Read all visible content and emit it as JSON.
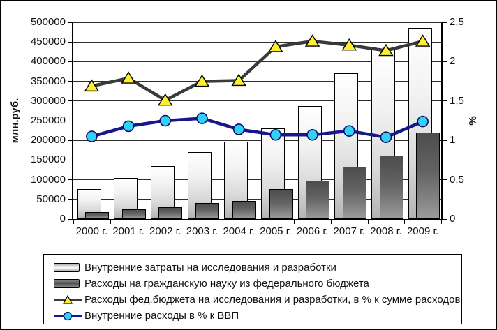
{
  "chart_data": {
    "type": "bar+line combo",
    "categories": [
      "2000 г.",
      "2001 г.",
      "2002 г.",
      "2003 г.",
      "2004 г.",
      "2005 г.",
      "2006 г.",
      "2007 г.",
      "2008 г.",
      "2009 г."
    ],
    "series": [
      {
        "name": "Внутренние затраты на исследования и разработки",
        "type": "bar",
        "style": "light",
        "axis": "left",
        "values": [
          76000,
          105000,
          135000,
          170000,
          196000,
          231000,
          288000,
          370000,
          430000,
          486000
        ]
      },
      {
        "name": "Расходы на гражданскую науку из федерального бюджета",
        "type": "bar",
        "style": "dark",
        "axis": "left",
        "values": [
          17000,
          24000,
          31000,
          41000,
          47000,
          77000,
          97000,
          133000,
          162000,
          219000
        ]
      },
      {
        "name": "Расходы фед.бюджета на исследования и разработки, в % к сумме расходов",
        "type": "line",
        "marker": "triangle",
        "axis": "right",
        "values": [
          1.69,
          1.79,
          1.51,
          1.75,
          1.76,
          2.19,
          2.26,
          2.21,
          2.14,
          2.26
        ]
      },
      {
        "name": "Внутренние расходы в % к ВВП",
        "type": "line",
        "marker": "circle",
        "axis": "right",
        "values": [
          1.05,
          1.18,
          1.25,
          1.28,
          1.14,
          1.07,
          1.07,
          1.12,
          1.04,
          1.24
        ]
      }
    ],
    "left_axis": {
      "label": "млн.руб.",
      "min": 0,
      "max": 500000,
      "tick_step": 50000,
      "tick_labels": [
        "0",
        "50000",
        "100000",
        "150000",
        "200000",
        "250000",
        "300000",
        "350000",
        "400000",
        "450000",
        "500000"
      ]
    },
    "right_axis": {
      "label": "%",
      "min": 0,
      "max": 2.5,
      "tick_step": 0.5,
      "tick_labels": [
        "0",
        "0,5",
        "1",
        "1,5",
        "2",
        "2,5"
      ]
    },
    "grid": "horizontal, every 50000",
    "legend_position": "bottom"
  },
  "legend": {
    "items": [
      {
        "marker": "bar-light",
        "label": "Внутренние затраты на исследования и разработки"
      },
      {
        "marker": "bar-dark",
        "label": "Расходы на гражданскую науку из федерального бюджета"
      },
      {
        "marker": "line-triangle",
        "label": "Расходы фед.бюджета на исследования и разработки, в % к сумме расходов"
      },
      {
        "marker": "line-circle",
        "label": "Внутренние расходы в % к ВВП"
      }
    ]
  },
  "colors": {
    "triangle_line": "#3a3a3a",
    "triangle_fill": "#fdee30",
    "triangle_stroke": "#000000",
    "circle_line": "#17178c",
    "circle_fill": "#2fd1f5",
    "circle_stroke": "#0b0b6b",
    "gridline": "#2e2e2e",
    "axis": "#000000"
  }
}
